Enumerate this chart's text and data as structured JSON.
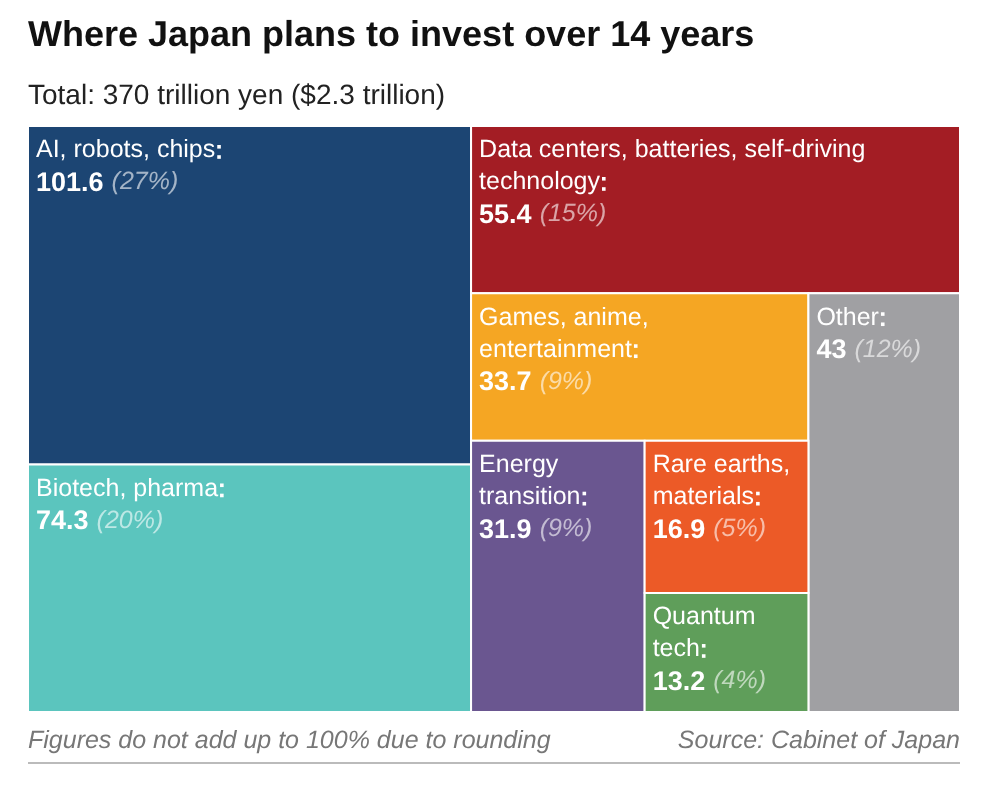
{
  "chart_data": {
    "type": "other",
    "title": "Where Japan plans to invest over 14 years",
    "subtitle": "Total: 370 trillion yen ($2.3 trillion)",
    "categories": [
      "AI, robots, chips",
      "Biotech, pharma",
      "Data centers, batteries, self-driving technology",
      "Games, anime, entertainment",
      "Other",
      "Energy transition",
      "Rare earths, materials",
      "Quantum tech"
    ],
    "values": [
      101.6,
      74.3,
      55.4,
      33.7,
      43,
      31.9,
      16.9,
      13.2
    ],
    "data_labels": true,
    "colors": [
      "#1c4573",
      "#5bc5be",
      "#a31d24",
      "#f5a623",
      "#a0a0a3",
      "#6a5690",
      "#ec5a27",
      "#5f9e5a"
    ],
    "annotations": [
      {
        "text": "(27%)",
        "x": "AI, robots, chips"
      },
      {
        "text": "(20%)",
        "x": "Biotech, pharma"
      },
      {
        "text": "(15%)",
        "x": "Data centers, batteries, self-driving technology"
      },
      {
        "text": "(9%)",
        "x": "Games, anime, entertainment"
      },
      {
        "text": "(12%)",
        "x": "Other"
      },
      {
        "text": "(9%)",
        "x": "Energy transition"
      },
      {
        "text": "(5%)",
        "x": "Rare earths, materials"
      },
      {
        "text": "(4%)",
        "x": "Quantum tech"
      },
      "Figures do not add up to 100% due to rounding",
      "Source: Cabinet of Japan"
    ]
  }
}
